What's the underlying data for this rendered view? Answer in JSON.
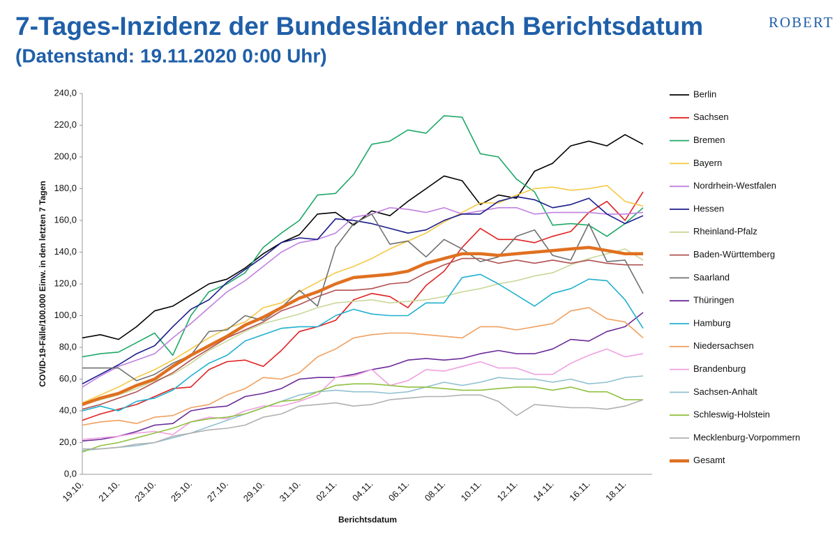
{
  "logo": "ROBERT",
  "chart_data": {
    "type": "line",
    "title": "7-Tages-Inzidenz der Bundesländer nach Berichtsdatum",
    "subtitle": "(Datenstand: 19.11.2020 0:00 Uhr)",
    "x_label": "Berichtsdatum",
    "y_label": "COVID-19-Fälle/100.000 Einw. in den letzten 7 Tagen",
    "categories": [
      "19.10.",
      null,
      "21.10.",
      null,
      "23.10.",
      null,
      "25.10.",
      null,
      "27.10.",
      null,
      "29.10.",
      null,
      "31.10.",
      null,
      "02.11.",
      null,
      "04.11.",
      null,
      "06.11.",
      null,
      "08.11.",
      null,
      "10.11.",
      null,
      "12.11.",
      null,
      "14.11.",
      null,
      "16.11.",
      null,
      "18.11.",
      null
    ],
    "ylim": [
      0,
      240
    ],
    "yticks": [
      {
        "value": 0,
        "label": "0,0"
      },
      {
        "value": 20,
        "label": "20,0"
      },
      {
        "value": 40,
        "label": "40,0"
      },
      {
        "value": 60,
        "label": "60,0"
      },
      {
        "value": 80,
        "label": "80,0"
      },
      {
        "value": 100,
        "label": "100,0"
      },
      {
        "value": 120,
        "label": "120,0"
      },
      {
        "value": 140,
        "label": "140,0"
      },
      {
        "value": 160,
        "label": "160,0"
      },
      {
        "value": 180,
        "label": "180,0"
      },
      {
        "value": 200,
        "label": "200,0"
      },
      {
        "value": 220,
        "label": "220,0"
      },
      {
        "value": 240,
        "label": "240,0"
      }
    ],
    "grid": false,
    "legend": "right",
    "series": [
      {
        "name": "Berlin",
        "color": "#000000",
        "values": [
          86,
          88,
          85,
          93,
          103,
          106,
          113,
          120,
          123,
          130,
          139,
          146,
          151,
          164,
          165,
          157,
          166,
          163,
          172,
          180,
          188,
          185,
          170,
          176,
          174,
          191,
          196,
          207,
          210,
          207,
          214,
          208
        ]
      },
      {
        "name": "Sachsen",
        "color": "#e02020",
        "values": [
          34,
          38,
          41,
          44,
          49,
          54,
          55,
          66,
          71,
          72,
          68,
          78,
          90,
          93,
          97,
          110,
          114,
          112,
          105,
          119,
          128,
          143,
          155,
          148,
          148,
          146,
          150,
          153,
          165,
          172,
          160,
          178
        ]
      },
      {
        "name": "Bremen",
        "color": "#1fa868",
        "values": [
          74,
          76,
          77,
          83,
          89,
          75,
          100,
          115,
          120,
          127,
          143,
          152,
          160,
          176,
          177,
          189,
          208,
          210,
          217,
          215,
          226,
          225,
          202,
          200,
          186,
          178,
          157,
          158,
          157,
          150,
          158,
          168
        ]
      },
      {
        "name": "Bayern",
        "color": "#f5c842",
        "values": [
          45,
          50,
          55,
          61,
          66,
          72,
          79,
          86,
          92,
          96,
          105,
          108,
          115,
          121,
          127,
          131,
          136,
          142,
          147,
          152,
          159,
          165,
          171,
          171,
          176,
          180,
          181,
          179,
          180,
          182,
          172,
          169
        ]
      },
      {
        "name": "Nordrhein-Westfalen",
        "color": "#c080e0",
        "values": [
          55,
          62,
          68,
          72,
          76,
          86,
          95,
          105,
          115,
          122,
          131,
          140,
          146,
          148,
          152,
          162,
          164,
          168,
          167,
          165,
          168,
          164,
          166,
          168,
          168,
          164,
          165,
          165,
          165,
          164,
          164,
          165
        ]
      },
      {
        "name": "Hessen",
        "color": "#1a1a8a",
        "values": [
          57,
          63,
          69,
          76,
          81,
          93,
          104,
          110,
          121,
          129,
          137,
          146,
          149,
          148,
          161,
          160,
          158,
          155,
          152,
          154,
          160,
          164,
          164,
          172,
          175,
          173,
          168,
          170,
          174,
          164,
          158,
          163
        ]
      },
      {
        "name": "Rheinland-Pfalz",
        "color": "#c8d89a",
        "values": [
          44,
          47,
          50,
          54,
          59,
          63,
          70,
          78,
          84,
          90,
          95,
          98,
          101,
          105,
          108,
          109,
          110,
          108,
          109,
          110,
          112,
          115,
          117,
          120,
          122,
          125,
          127,
          132,
          136,
          139,
          142,
          135
        ]
      },
      {
        "name": "Baden-Württemberg",
        "color": "#b05050",
        "values": [
          41,
          44,
          48,
          52,
          58,
          64,
          72,
          79,
          86,
          91,
          96,
          103,
          107,
          112,
          116,
          116,
          117,
          120,
          121,
          127,
          132,
          136,
          136,
          133,
          135,
          133,
          135,
          133,
          135,
          133,
          132,
          132
        ]
      },
      {
        "name": "Saarland",
        "color": "#707070",
        "values": [
          67,
          67,
          67,
          59,
          63,
          70,
          75,
          90,
          91,
          100,
          97,
          105,
          116,
          106,
          143,
          158,
          164,
          145,
          147,
          137,
          148,
          142,
          134,
          137,
          150,
          154,
          138,
          135,
          158,
          134,
          135,
          114
        ]
      },
      {
        "name": "Thüringen",
        "color": "#6a2a9a",
        "values": [
          21,
          22,
          24,
          27,
          31,
          32,
          40,
          42,
          43,
          49,
          51,
          54,
          60,
          61,
          61,
          63,
          66,
          68,
          72,
          73,
          72,
          73,
          76,
          78,
          76,
          76,
          79,
          85,
          84,
          90,
          93,
          102
        ]
      },
      {
        "name": "Hamburg",
        "color": "#20b0d0",
        "values": [
          40,
          43,
          40,
          46,
          48,
          53,
          62,
          70,
          75,
          84,
          88,
          92,
          93,
          93,
          100,
          104,
          101,
          100,
          100,
          108,
          108,
          124,
          126,
          120,
          113,
          106,
          114,
          117,
          123,
          122,
          110,
          92
        ]
      },
      {
        "name": "Niedersachsen",
        "color": "#f0a060",
        "values": [
          31,
          33,
          34,
          32,
          36,
          37,
          42,
          44,
          50,
          54,
          61,
          60,
          64,
          74,
          79,
          86,
          88,
          89,
          89,
          88,
          87,
          86,
          93,
          93,
          91,
          93,
          95,
          103,
          105,
          98,
          96,
          86
        ]
      },
      {
        "name": "Brandenburg",
        "color": "#f0a0e0",
        "values": [
          22,
          23,
          24,
          26,
          27,
          25,
          33,
          36,
          35,
          40,
          43,
          43,
          46,
          50,
          61,
          62,
          66,
          56,
          59,
          66,
          65,
          68,
          71,
          67,
          67,
          63,
          63,
          70,
          75,
          79,
          74,
          76
        ]
      },
      {
        "name": "Sachsen-Anhalt",
        "color": "#90c0d0",
        "values": [
          15,
          16,
          17,
          18,
          20,
          23,
          26,
          30,
          34,
          38,
          42,
          46,
          50,
          52,
          53,
          52,
          52,
          51,
          52,
          55,
          58,
          56,
          58,
          61,
          60,
          60,
          58,
          60,
          57,
          58,
          61,
          62
        ]
      },
      {
        "name": "Schleswig-Holstein",
        "color": "#90c040",
        "values": [
          14,
          18,
          20,
          23,
          26,
          29,
          33,
          35,
          36,
          38,
          42,
          46,
          47,
          52,
          56,
          57,
          57,
          56,
          55,
          55,
          54,
          53,
          53,
          54,
          55,
          55,
          53,
          55,
          52,
          52,
          47,
          47
        ]
      },
      {
        "name": "Mecklenburg-Vorpommern",
        "color": "#b0b0b0",
        "values": [
          16,
          16,
          17,
          19,
          20,
          24,
          26,
          28,
          29,
          31,
          36,
          38,
          43,
          44,
          45,
          43,
          44,
          47,
          48,
          49,
          49,
          50,
          50,
          46,
          37,
          44,
          43,
          42,
          42,
          41,
          43,
          47
        ]
      },
      {
        "name": "Gesamt",
        "color": "#e07020",
        "values": [
          44,
          48,
          51,
          56,
          60,
          68,
          75,
          81,
          87,
          94,
          99,
          105,
          111,
          115,
          120,
          124,
          125,
          126,
          128,
          133,
          136,
          139,
          139,
          138,
          139,
          140,
          141,
          142,
          143,
          141,
          139,
          139
        ]
      }
    ]
  }
}
